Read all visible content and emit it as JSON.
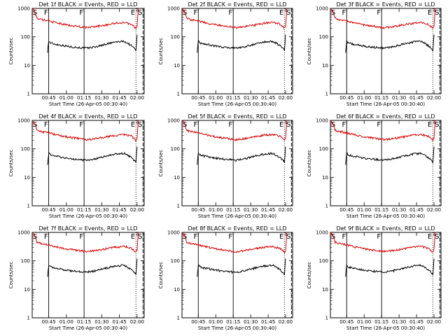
{
  "figure": {
    "xlabel": "Start Time (26-Apr-05 00:30:40)",
    "ylabel": "Counts/sec",
    "colors": {
      "events": "#000000",
      "lld": "#dd0000"
    }
  },
  "chart_data": [
    {
      "type": "line",
      "title": "Det 1f BLACK = Events, RED = LLD",
      "xlabel": "Start Time (26-Apr-05 00:30:40)",
      "ylabel": "Counts/sec",
      "x_ticks": [
        "00:45",
        "01:00",
        "01:15",
        "01:30",
        "01:45",
        "02:00"
      ],
      "y_ticks": [
        "1",
        "10",
        "100",
        "1000"
      ],
      "xlim": [
        0,
        95
      ],
      "ylim_log": [
        1,
        1000
      ],
      "markers": [
        {
          "label": "S",
          "t": 0
        },
        {
          "label": "F",
          "t": 14
        },
        {
          "label": "F",
          "t": 44
        },
        {
          "label": "E",
          "t": 88
        },
        {
          "label": "S",
          "t": 94
        }
      ],
      "series": [
        {
          "name": "Events",
          "color": "#000000",
          "t": [
            13,
            14,
            16,
            20,
            26,
            32,
            40,
            46,
            54,
            62,
            70,
            78,
            84,
            88,
            89
          ],
          "y": [
            30,
            70,
            60,
            55,
            50,
            45,
            42,
            40,
            45,
            55,
            65,
            70,
            50,
            35,
            120
          ]
        },
        {
          "name": "LLD",
          "color": "#dd0000",
          "t": [
            0,
            2,
            4,
            8,
            12,
            16,
            22,
            30,
            40,
            46,
            54,
            62,
            70,
            78,
            84,
            88,
            89,
            90
          ],
          "y": [
            1000,
            800,
            450,
            400,
            380,
            350,
            300,
            260,
            230,
            210,
            230,
            260,
            300,
            320,
            280,
            200,
            250,
            1000
          ]
        }
      ]
    },
    {
      "type": "line",
      "title": "Det 2f BLACK = Events, RED = LLD",
      "xlabel": "Start Time (26-Apr-05 00:30:40)",
      "ylabel": "Counts/sec",
      "x_ticks": [
        "00:45",
        "01:00",
        "01:15",
        "01:30",
        "01:45",
        "02:00"
      ],
      "y_ticks": [
        "1",
        "10",
        "100",
        "1000"
      ],
      "xlim": [
        0,
        95
      ],
      "ylim_log": [
        1,
        1000
      ],
      "markers": [
        {
          "label": "S",
          "t": 0
        },
        {
          "label": "F",
          "t": 14
        },
        {
          "label": "F",
          "t": 44
        },
        {
          "label": "E",
          "t": 88
        },
        {
          "label": "S",
          "t": 94
        }
      ],
      "series": [
        {
          "name": "Events",
          "color": "#000000",
          "t": [
            13,
            14,
            16,
            20,
            26,
            32,
            40,
            46,
            54,
            62,
            70,
            78,
            84,
            88,
            89
          ],
          "y": [
            30,
            70,
            60,
            55,
            50,
            45,
            42,
            40,
            45,
            55,
            65,
            70,
            50,
            35,
            120
          ]
        },
        {
          "name": "LLD",
          "color": "#dd0000",
          "t": [
            0,
            2,
            4,
            8,
            12,
            16,
            22,
            30,
            40,
            46,
            54,
            62,
            70,
            78,
            84,
            88,
            89,
            90
          ],
          "y": [
            1000,
            800,
            450,
            400,
            380,
            350,
            300,
            260,
            230,
            210,
            230,
            260,
            300,
            320,
            280,
            200,
            250,
            1000
          ]
        }
      ]
    },
    {
      "type": "line",
      "title": "Det 3f BLACK = Events, RED = LLD",
      "xlabel": "Start Time (26-Apr-05 00:30:40)",
      "ylabel": "Counts/sec",
      "x_ticks": [
        "00:45",
        "01:00",
        "01:15",
        "01:30",
        "01:45",
        "02:00"
      ],
      "y_ticks": [
        "1",
        "10",
        "100",
        "1000"
      ],
      "xlim": [
        0,
        95
      ],
      "ylim_log": [
        1,
        1000
      ],
      "markers": [
        {
          "label": "S",
          "t": 0
        },
        {
          "label": "F",
          "t": 14
        },
        {
          "label": "F",
          "t": 44
        },
        {
          "label": "E",
          "t": 88
        },
        {
          "label": "S",
          "t": 94
        }
      ],
      "series": [
        {
          "name": "Events",
          "color": "#000000",
          "t": [
            13,
            14,
            16,
            20,
            26,
            32,
            40,
            46,
            54,
            62,
            70,
            78,
            84,
            88,
            89
          ],
          "y": [
            30,
            70,
            60,
            55,
            50,
            45,
            42,
            40,
            45,
            55,
            65,
            70,
            50,
            35,
            120
          ]
        },
        {
          "name": "LLD",
          "color": "#dd0000",
          "t": [
            0,
            2,
            4,
            8,
            12,
            16,
            22,
            30,
            40,
            46,
            54,
            62,
            70,
            78,
            84,
            88,
            89,
            90
          ],
          "y": [
            1000,
            800,
            450,
            400,
            380,
            350,
            300,
            260,
            230,
            210,
            230,
            260,
            300,
            320,
            280,
            200,
            250,
            1000
          ]
        }
      ]
    },
    {
      "type": "line",
      "title": "Det 4f BLACK = Events, RED = LLD",
      "xlabel": "Start Time (26-Apr-05 00:30:40)",
      "ylabel": "Counts/sec",
      "x_ticks": [
        "00:45",
        "01:00",
        "01:15",
        "01:30",
        "01:45",
        "02:00"
      ],
      "y_ticks": [
        "1",
        "10",
        "100",
        "1000"
      ],
      "xlim": [
        0,
        95
      ],
      "ylim_log": [
        1,
        1000
      ],
      "markers": [
        {
          "label": "S",
          "t": 0
        },
        {
          "label": "F",
          "t": 14
        },
        {
          "label": "F",
          "t": 44
        },
        {
          "label": "E",
          "t": 88
        },
        {
          "label": "S",
          "t": 94
        }
      ],
      "series": [
        {
          "name": "Events",
          "color": "#000000",
          "t": [
            13,
            14,
            16,
            20,
            26,
            32,
            40,
            46,
            54,
            62,
            70,
            78,
            84,
            88,
            89
          ],
          "y": [
            30,
            70,
            60,
            55,
            50,
            45,
            42,
            40,
            45,
            55,
            65,
            70,
            50,
            35,
            120
          ]
        },
        {
          "name": "LLD",
          "color": "#dd0000",
          "t": [
            0,
            2,
            4,
            8,
            12,
            16,
            22,
            30,
            40,
            46,
            54,
            62,
            70,
            78,
            84,
            88,
            89,
            90
          ],
          "y": [
            1000,
            800,
            450,
            400,
            380,
            350,
            300,
            260,
            230,
            210,
            230,
            260,
            300,
            320,
            280,
            200,
            250,
            1000
          ]
        }
      ]
    },
    {
      "type": "line",
      "title": "Det 5f BLACK = Events, RED = LLD",
      "xlabel": "Start Time (26-Apr-05 00:30:40)",
      "ylabel": "Counts/sec",
      "x_ticks": [
        "00:45",
        "01:00",
        "01:15",
        "01:30",
        "01:45",
        "02:00"
      ],
      "y_ticks": [
        "1",
        "10",
        "100",
        "1000"
      ],
      "xlim": [
        0,
        95
      ],
      "ylim_log": [
        1,
        1000
      ],
      "markers": [
        {
          "label": "S",
          "t": 0
        },
        {
          "label": "F",
          "t": 14
        },
        {
          "label": "F",
          "t": 44
        },
        {
          "label": "E",
          "t": 88
        },
        {
          "label": "S",
          "t": 94
        }
      ],
      "series": [
        {
          "name": "Events",
          "color": "#000000",
          "t": [
            13,
            14,
            16,
            20,
            26,
            32,
            40,
            46,
            54,
            62,
            70,
            78,
            84,
            88,
            89
          ],
          "y": [
            30,
            70,
            60,
            55,
            50,
            45,
            42,
            40,
            45,
            55,
            65,
            70,
            50,
            35,
            120
          ]
        },
        {
          "name": "LLD",
          "color": "#dd0000",
          "t": [
            0,
            2,
            4,
            8,
            12,
            16,
            22,
            30,
            40,
            46,
            54,
            62,
            70,
            78,
            84,
            88,
            89,
            90
          ],
          "y": [
            1000,
            800,
            450,
            400,
            380,
            350,
            300,
            260,
            230,
            210,
            230,
            260,
            300,
            320,
            280,
            200,
            250,
            1000
          ]
        }
      ]
    },
    {
      "type": "line",
      "title": "Det 6f BLACK = Events, RED = LLD",
      "xlabel": "Start Time (26-Apr-05 00:30:40)",
      "ylabel": "Counts/sec",
      "x_ticks": [
        "00:45",
        "01:00",
        "01:15",
        "01:30",
        "01:45",
        "02:00"
      ],
      "y_ticks": [
        "1",
        "10",
        "100",
        "1000"
      ],
      "xlim": [
        0,
        95
      ],
      "ylim_log": [
        1,
        1000
      ],
      "markers": [
        {
          "label": "S",
          "t": 0
        },
        {
          "label": "F",
          "t": 14
        },
        {
          "label": "F",
          "t": 44
        },
        {
          "label": "E",
          "t": 88
        },
        {
          "label": "S",
          "t": 94
        }
      ],
      "series": [
        {
          "name": "Events",
          "color": "#000000",
          "t": [
            13,
            14,
            16,
            20,
            26,
            32,
            40,
            46,
            54,
            62,
            70,
            78,
            84,
            88,
            89
          ],
          "y": [
            30,
            70,
            60,
            55,
            50,
            45,
            42,
            40,
            45,
            55,
            65,
            70,
            50,
            35,
            120
          ]
        },
        {
          "name": "LLD",
          "color": "#dd0000",
          "t": [
            0,
            2,
            4,
            8,
            12,
            16,
            22,
            30,
            40,
            46,
            54,
            62,
            70,
            78,
            84,
            88,
            89,
            90
          ],
          "y": [
            1000,
            800,
            450,
            400,
            380,
            350,
            300,
            260,
            230,
            210,
            230,
            260,
            300,
            320,
            280,
            200,
            250,
            1000
          ]
        }
      ]
    },
    {
      "type": "line",
      "title": "Det 7f BLACK = Events, RED = LLD",
      "xlabel": "Start Time (26-Apr-05 00:30:40)",
      "ylabel": "Counts/sec",
      "x_ticks": [
        "00:45",
        "01:00",
        "01:15",
        "01:30",
        "01:45",
        "02:00"
      ],
      "y_ticks": [
        "1",
        "10",
        "100",
        "1000"
      ],
      "xlim": [
        0,
        95
      ],
      "ylim_log": [
        1,
        1000
      ],
      "markers": [
        {
          "label": "S",
          "t": 0
        },
        {
          "label": "F",
          "t": 14
        },
        {
          "label": "F",
          "t": 44
        },
        {
          "label": "E",
          "t": 88
        },
        {
          "label": "S",
          "t": 94
        }
      ],
      "series": [
        {
          "name": "Events",
          "color": "#000000",
          "t": [
            13,
            14,
            16,
            20,
            26,
            32,
            40,
            46,
            54,
            62,
            70,
            78,
            84,
            88,
            89
          ],
          "y": [
            30,
            70,
            60,
            55,
            50,
            45,
            42,
            40,
            45,
            55,
            65,
            70,
            50,
            35,
            120
          ]
        },
        {
          "name": "LLD",
          "color": "#dd0000",
          "t": [
            0,
            2,
            4,
            8,
            12,
            16,
            22,
            30,
            40,
            46,
            54,
            62,
            70,
            78,
            84,
            88,
            89,
            90
          ],
          "y": [
            1000,
            800,
            450,
            400,
            380,
            350,
            300,
            260,
            230,
            210,
            230,
            260,
            300,
            320,
            280,
            200,
            250,
            1000
          ]
        }
      ]
    },
    {
      "type": "line",
      "title": "Det 8f BLACK = Events, RED = LLD",
      "xlabel": "Start Time (26-Apr-05 00:30:40)",
      "ylabel": "Counts/sec",
      "x_ticks": [
        "00:45",
        "01:00",
        "01:15",
        "01:30",
        "01:45",
        "02:00"
      ],
      "y_ticks": [
        "1",
        "10",
        "100",
        "1000"
      ],
      "xlim": [
        0,
        95
      ],
      "ylim_log": [
        1,
        1000
      ],
      "markers": [
        {
          "label": "S",
          "t": 0
        },
        {
          "label": "F",
          "t": 14
        },
        {
          "label": "F",
          "t": 44
        },
        {
          "label": "E",
          "t": 88
        },
        {
          "label": "S",
          "t": 94
        }
      ],
      "series": [
        {
          "name": "Events",
          "color": "#000000",
          "t": [
            13,
            14,
            16,
            20,
            26,
            32,
            40,
            46,
            54,
            62,
            70,
            78,
            84,
            88,
            89
          ],
          "y": [
            30,
            70,
            60,
            55,
            50,
            45,
            42,
            40,
            45,
            55,
            65,
            70,
            50,
            35,
            120
          ]
        },
        {
          "name": "LLD",
          "color": "#dd0000",
          "t": [
            0,
            2,
            4,
            8,
            12,
            16,
            22,
            30,
            40,
            46,
            54,
            62,
            70,
            78,
            84,
            88,
            89,
            90
          ],
          "y": [
            1000,
            800,
            450,
            400,
            380,
            350,
            300,
            260,
            230,
            210,
            230,
            260,
            300,
            320,
            280,
            200,
            250,
            1000
          ]
        }
      ]
    },
    {
      "type": "line",
      "title": "Det 9f BLACK = Events, RED = LLD",
      "xlabel": "Start Time (26-Apr-05 00:30:40)",
      "ylabel": "Counts/sec",
      "x_ticks": [
        "00:45",
        "01:00",
        "01:15",
        "01:30",
        "01:45",
        "02:00"
      ],
      "y_ticks": [
        "1",
        "10",
        "100",
        "1000"
      ],
      "xlim": [
        0,
        95
      ],
      "ylim_log": [
        1,
        1000
      ],
      "markers": [
        {
          "label": "S",
          "t": 0
        },
        {
          "label": "F",
          "t": 14
        },
        {
          "label": "F",
          "t": 44
        },
        {
          "label": "E",
          "t": 88
        },
        {
          "label": "S",
          "t": 94
        }
      ],
      "series": [
        {
          "name": "Events",
          "color": "#000000",
          "t": [
            13,
            14,
            16,
            20,
            26,
            32,
            40,
            46,
            54,
            62,
            70,
            78,
            84,
            88,
            89
          ],
          "y": [
            30,
            70,
            60,
            55,
            50,
            45,
            42,
            40,
            45,
            55,
            65,
            70,
            50,
            35,
            120
          ]
        },
        {
          "name": "LLD",
          "color": "#dd0000",
          "t": [
            0,
            2,
            4,
            8,
            12,
            16,
            22,
            30,
            40,
            46,
            54,
            62,
            70,
            78,
            84,
            88,
            89,
            90
          ],
          "y": [
            1000,
            800,
            450,
            400,
            380,
            350,
            300,
            260,
            230,
            210,
            230,
            260,
            300,
            320,
            280,
            200,
            250,
            1000
          ]
        }
      ]
    }
  ]
}
